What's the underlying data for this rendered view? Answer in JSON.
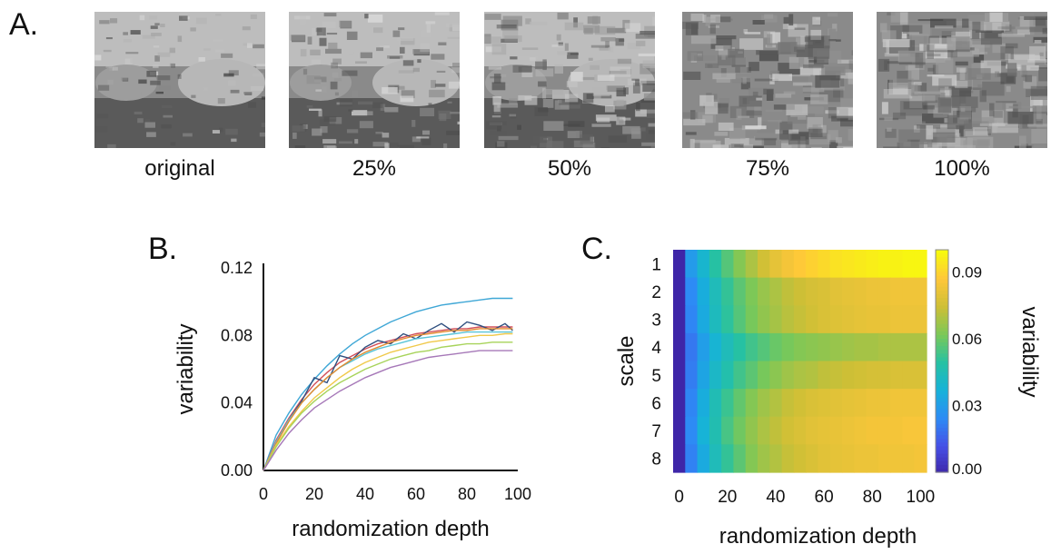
{
  "panel_a": {
    "letter": "A.",
    "thumbnails": [
      {
        "label": "original"
      },
      {
        "label": "25%"
      },
      {
        "label": "50%"
      },
      {
        "label": "75%"
      },
      {
        "label": "100%"
      }
    ]
  },
  "chart_data": [
    {
      "type": "line",
      "panel_letter": "B.",
      "title": "",
      "xlabel": "randomization depth",
      "ylabel": "variability",
      "xlim": [
        0,
        100
      ],
      "ylim": [
        0,
        0.12
      ],
      "xticks": [
        0,
        20,
        40,
        60,
        80,
        100
      ],
      "yticks": [
        "0.00",
        "0.04",
        "0.08",
        "0.12"
      ],
      "grid": false,
      "legend": "none",
      "x": [
        0,
        5,
        10,
        15,
        20,
        25,
        30,
        35,
        40,
        45,
        50,
        55,
        60,
        65,
        70,
        75,
        80,
        85,
        90,
        95,
        98
      ],
      "series": [
        {
          "color": "#3fa7d6",
          "values": [
            0,
            0.021,
            0.034,
            0.045,
            0.054,
            0.062,
            0.069,
            0.075,
            0.08,
            0.084,
            0.088,
            0.091,
            0.094,
            0.096,
            0.098,
            0.099,
            0.1,
            0.101,
            0.102,
            0.102,
            0.102
          ]
        },
        {
          "color": "#d2505a",
          "values": [
            0,
            0.018,
            0.031,
            0.042,
            0.051,
            0.058,
            0.064,
            0.068,
            0.072,
            0.075,
            0.077,
            0.079,
            0.081,
            0.082,
            0.083,
            0.084,
            0.084,
            0.085,
            0.085,
            0.085,
            0.085
          ]
        },
        {
          "color": "#2f4f7f",
          "values": [
            0,
            0.016,
            0.03,
            0.041,
            0.055,
            0.052,
            0.068,
            0.066,
            0.073,
            0.077,
            0.075,
            0.081,
            0.078,
            0.083,
            0.087,
            0.082,
            0.088,
            0.086,
            0.083,
            0.087,
            0.083
          ]
        },
        {
          "color": "#58c4d8",
          "values": [
            0,
            0.017,
            0.03,
            0.04,
            0.048,
            0.055,
            0.061,
            0.065,
            0.069,
            0.072,
            0.074,
            0.076,
            0.078,
            0.079,
            0.08,
            0.081,
            0.082,
            0.082,
            0.082,
            0.082,
            0.082
          ]
        },
        {
          "color": "#e38a2e",
          "values": [
            0,
            0.016,
            0.029,
            0.04,
            0.048,
            0.055,
            0.061,
            0.066,
            0.07,
            0.073,
            0.076,
            0.078,
            0.08,
            0.081,
            0.082,
            0.083,
            0.083,
            0.084,
            0.084,
            0.084,
            0.084
          ]
        },
        {
          "color": "#f0c94a",
          "values": [
            0,
            0.015,
            0.026,
            0.035,
            0.043,
            0.049,
            0.055,
            0.06,
            0.064,
            0.067,
            0.07,
            0.072,
            0.074,
            0.076,
            0.077,
            0.078,
            0.079,
            0.08,
            0.08,
            0.081,
            0.081
          ]
        },
        {
          "color": "#a7d35a",
          "values": [
            0,
            0.014,
            0.025,
            0.034,
            0.041,
            0.047,
            0.052,
            0.056,
            0.06,
            0.063,
            0.066,
            0.068,
            0.07,
            0.071,
            0.073,
            0.074,
            0.075,
            0.075,
            0.076,
            0.076,
            0.076
          ]
        },
        {
          "color": "#a678b8",
          "values": [
            0,
            0.012,
            0.022,
            0.03,
            0.037,
            0.042,
            0.047,
            0.051,
            0.055,
            0.058,
            0.061,
            0.063,
            0.065,
            0.067,
            0.068,
            0.069,
            0.07,
            0.071,
            0.071,
            0.071,
            0.071
          ]
        }
      ]
    },
    {
      "type": "heatmap",
      "panel_letter": "C.",
      "title": "",
      "xlabel": "randomization depth",
      "ylabel": "scale",
      "colorbar_label": "variability",
      "x": [
        0,
        5,
        10,
        15,
        20,
        25,
        30,
        35,
        40,
        45,
        50,
        55,
        60,
        65,
        70,
        75,
        80,
        85,
        90,
        95,
        100
      ],
      "y": [
        "1",
        "2",
        "3",
        "4",
        "5",
        "6",
        "7",
        "8"
      ],
      "xticks": [
        0,
        20,
        40,
        60,
        80,
        100
      ],
      "colorbar_ticks": [
        "0.00",
        "0.03",
        "0.06",
        "0.09"
      ],
      "clim": [
        0,
        0.1
      ],
      "colormap": [
        "#3e26a8",
        "#4650e6",
        "#2d8bf5",
        "#16b2d9",
        "#26c1a3",
        "#7ac858",
        "#cdbf36",
        "#fec73a",
        "#f7fa0d"
      ],
      "values": [
        [
          0.0,
          0.03,
          0.04,
          0.05,
          0.057,
          0.064,
          0.07,
          0.076,
          0.081,
          0.085,
          0.088,
          0.09,
          0.092,
          0.094,
          0.095,
          0.096,
          0.097,
          0.098,
          0.098,
          0.099,
          0.099
        ],
        [
          0.0,
          0.025,
          0.036,
          0.045,
          0.052,
          0.058,
          0.063,
          0.067,
          0.07,
          0.073,
          0.075,
          0.077,
          0.078,
          0.08,
          0.081,
          0.082,
          0.083,
          0.083,
          0.084,
          0.084,
          0.084
        ],
        [
          0.0,
          0.024,
          0.035,
          0.044,
          0.051,
          0.057,
          0.062,
          0.066,
          0.069,
          0.072,
          0.074,
          0.076,
          0.078,
          0.079,
          0.08,
          0.081,
          0.082,
          0.082,
          0.083,
          0.083,
          0.083
        ],
        [
          0.0,
          0.021,
          0.031,
          0.039,
          0.045,
          0.05,
          0.054,
          0.057,
          0.06,
          0.062,
          0.064,
          0.065,
          0.066,
          0.067,
          0.068,
          0.069,
          0.069,
          0.07,
          0.07,
          0.07,
          0.07
        ],
        [
          0.0,
          0.022,
          0.033,
          0.042,
          0.048,
          0.054,
          0.058,
          0.062,
          0.065,
          0.068,
          0.07,
          0.071,
          0.073,
          0.074,
          0.075,
          0.076,
          0.077,
          0.077,
          0.078,
          0.078,
          0.078
        ],
        [
          0.0,
          0.024,
          0.036,
          0.046,
          0.053,
          0.059,
          0.064,
          0.068,
          0.071,
          0.074,
          0.076,
          0.078,
          0.079,
          0.08,
          0.081,
          0.082,
          0.083,
          0.083,
          0.084,
          0.084,
          0.084
        ],
        [
          0.0,
          0.025,
          0.038,
          0.047,
          0.055,
          0.061,
          0.066,
          0.07,
          0.073,
          0.076,
          0.078,
          0.08,
          0.081,
          0.082,
          0.083,
          0.084,
          0.085,
          0.085,
          0.085,
          0.086,
          0.086
        ],
        [
          0.0,
          0.023,
          0.035,
          0.045,
          0.052,
          0.058,
          0.064,
          0.068,
          0.071,
          0.074,
          0.076,
          0.078,
          0.08,
          0.081,
          0.082,
          0.083,
          0.083,
          0.084,
          0.084,
          0.084,
          0.085
        ]
      ]
    }
  ]
}
